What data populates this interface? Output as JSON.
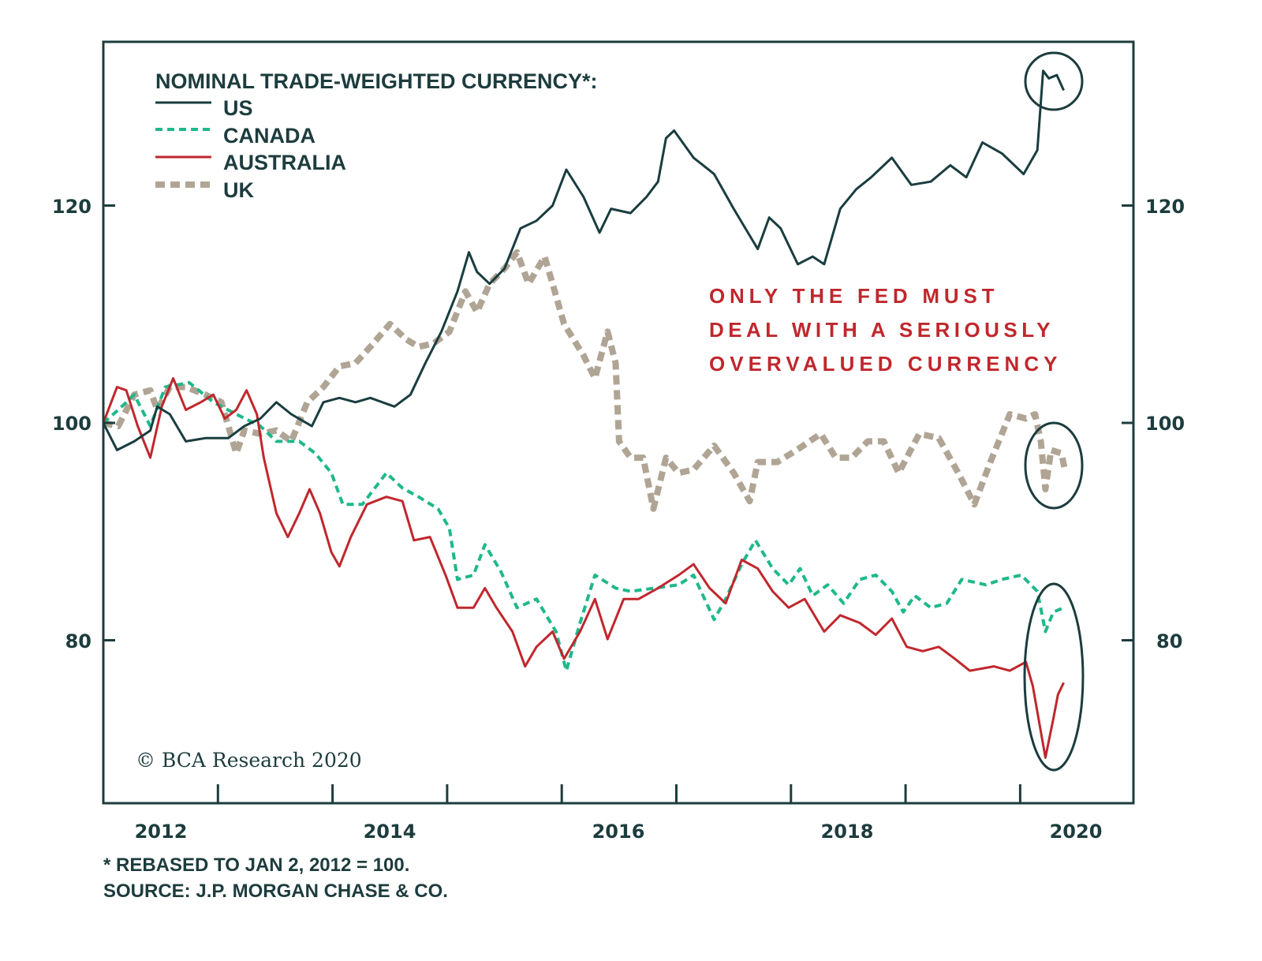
{
  "chart_data": {
    "type": "line",
    "title": "NOMINAL TRADE-WEIGHTED CURRENCY*:",
    "xlabel": "",
    "ylabel": "",
    "xlim": [
      2012,
      2021
    ],
    "ylim": [
      65,
      135
    ],
    "x_tick_labels": [
      "2012",
      "2014",
      "2016",
      "2018",
      "2020"
    ],
    "y_ticks": [
      80,
      100,
      120
    ],
    "y_tick_labels": [
      "80",
      "100",
      "120"
    ],
    "grid": false,
    "legend_placement": "top-left",
    "annotation": [
      "ONLY THE FED MUST",
      "DEAL WITH A SERIOUSLY",
      "OVERVALUED CURRENCY"
    ],
    "footnotes": [
      "* REBASED TO JAN 2, 2012 = 100.",
      "SOURCE: J.P. MORGAN CHASE & CO."
    ],
    "copyright": "© BCA Research 2020",
    "series": [
      {
        "name": "US",
        "color": "#1a3d3f",
        "style": "solid",
        "x": [
          2012.0,
          2012.12,
          2012.27,
          2012.41,
          2012.47,
          2012.58,
          2012.72,
          2012.89,
          2013.09,
          2013.23,
          2013.37,
          2013.51,
          2013.64,
          2013.82,
          2013.92,
          2014.06,
          2014.2,
          2014.33,
          2014.54,
          2014.68,
          2014.81,
          2014.95,
          2015.09,
          2015.19,
          2015.26,
          2015.37,
          2015.5,
          2015.64,
          2015.78,
          2015.92,
          2016.04,
          2016.19,
          2016.33,
          2016.43,
          2016.6,
          2016.74,
          2016.84,
          2016.91,
          2016.98,
          2017.15,
          2017.33,
          2017.5,
          2017.71,
          2017.81,
          2017.91,
          2018.06,
          2018.19,
          2018.29,
          2018.43,
          2018.57,
          2018.7,
          2018.88,
          2019.05,
          2019.22,
          2019.39,
          2019.53,
          2019.67,
          2019.84,
          2020.03,
          2020.15,
          2020.2,
          2020.25,
          2020.32,
          2020.38
        ],
        "y": [
          100,
          97.5,
          98.3,
          99.3,
          101.5,
          100.8,
          98.3,
          98.6,
          98.6,
          99.7,
          100.4,
          101.9,
          100.8,
          99.7,
          101.9,
          102.3,
          101.9,
          102.3,
          101.5,
          102.6,
          105.5,
          108.4,
          112.1,
          115.7,
          113.9,
          112.8,
          114.2,
          117.9,
          118.6,
          120,
          123.3,
          120.8,
          117.5,
          119.7,
          119.3,
          120.8,
          122.2,
          126.2,
          126.9,
          124.4,
          122.9,
          119.7,
          116,
          118.9,
          117.9,
          114.6,
          115.3,
          114.6,
          119.7,
          121.5,
          122.6,
          124.4,
          121.9,
          122.2,
          123.7,
          122.6,
          125.8,
          124.8,
          122.9,
          125.1,
          132.4,
          131.7,
          132,
          130.6
        ]
      },
      {
        "name": "CANADA",
        "color": "#1fb88a",
        "style": "dashed",
        "x": [
          2012.0,
          2012.13,
          2012.27,
          2012.41,
          2012.54,
          2012.75,
          2012.96,
          2013.16,
          2013.37,
          2013.51,
          2013.71,
          2013.85,
          2013.99,
          2014.09,
          2014.26,
          2014.47,
          2014.61,
          2014.75,
          2014.92,
          2015.02,
          2015.09,
          2015.23,
          2015.33,
          2015.47,
          2015.61,
          2015.78,
          2015.95,
          2016.04,
          2016.16,
          2016.29,
          2016.47,
          2016.6,
          2016.81,
          2017.02,
          2017.15,
          2017.33,
          2017.43,
          2017.57,
          2017.69,
          2017.84,
          2017.98,
          2018.08,
          2018.19,
          2018.32,
          2018.46,
          2018.6,
          2018.74,
          2018.88,
          2018.98,
          2019.08,
          2019.22,
          2019.36,
          2019.49,
          2019.7,
          2019.84,
          2020.01,
          2020.15,
          2020.22,
          2020.29,
          2020.38
        ],
        "y": [
          100,
          101.2,
          102.6,
          99.7,
          103.3,
          103.7,
          101.9,
          100.8,
          99.7,
          98.3,
          98.3,
          97.2,
          95.4,
          92.5,
          92.5,
          95.4,
          94,
          93.2,
          92.1,
          90.3,
          85.6,
          86,
          88.8,
          86.3,
          83,
          83.8,
          80.8,
          77.2,
          81.6,
          86,
          84.8,
          84.5,
          84.8,
          85.1,
          86,
          81.9,
          83.8,
          87,
          89.2,
          86.6,
          85.1,
          86.6,
          84.1,
          85.1,
          83.4,
          85.6,
          86,
          84.5,
          82.6,
          84.1,
          83,
          83.4,
          85.6,
          85.1,
          85.6,
          86,
          84.5,
          80.8,
          82.6,
          83
        ]
      },
      {
        "name": "AUSTRALIA",
        "color": "#c0272d",
        "style": "solid",
        "x": [
          2012.0,
          2012.12,
          2012.2,
          2012.3,
          2012.41,
          2012.51,
          2012.61,
          2012.72,
          2012.85,
          2012.96,
          2013.06,
          2013.16,
          2013.25,
          2013.34,
          2013.4,
          2013.51,
          2013.61,
          2013.71,
          2013.8,
          2013.89,
          2013.99,
          2014.06,
          2014.16,
          2014.3,
          2014.47,
          2014.61,
          2014.71,
          2014.85,
          2014.99,
          2015.09,
          2015.23,
          2015.33,
          2015.43,
          2015.57,
          2015.68,
          2015.78,
          2015.92,
          2016.02,
          2016.16,
          2016.29,
          2016.4,
          2016.54,
          2016.67,
          2016.84,
          2017.02,
          2017.15,
          2017.29,
          2017.43,
          2017.57,
          2017.71,
          2017.84,
          2017.98,
          2018.12,
          2018.29,
          2018.43,
          2018.6,
          2018.74,
          2018.88,
          2019.01,
          2019.15,
          2019.29,
          2019.43,
          2019.56,
          2019.77,
          2019.91,
          2020.05,
          2020.11,
          2020.22,
          2020.29,
          2020.33,
          2020.38
        ],
        "y": [
          100,
          103.3,
          103,
          99.7,
          96.8,
          101.5,
          104.1,
          101.2,
          101.9,
          102.6,
          100.4,
          101.2,
          103,
          100.8,
          96.8,
          91.7,
          89.5,
          91.7,
          93.9,
          91.7,
          88.1,
          86.8,
          89.5,
          92.5,
          93.2,
          92.8,
          89.2,
          89.5,
          85.9,
          83,
          83,
          84.8,
          83,
          80.8,
          77.6,
          79.4,
          80.8,
          78.3,
          80.8,
          83.8,
          80.1,
          83.8,
          83.8,
          84.8,
          86,
          87,
          84.8,
          83.4,
          87.4,
          86.6,
          84.5,
          83,
          83.8,
          80.8,
          82.3,
          81.6,
          80.5,
          82,
          79.4,
          79,
          79.4,
          78.3,
          77.2,
          77.6,
          77.2,
          78,
          75.8,
          69.2,
          72.8,
          75,
          76.1
        ]
      },
      {
        "name": "UK",
        "color": "#b0a595",
        "style": "dashed-thick",
        "x": [
          2012.0,
          2012.13,
          2012.27,
          2012.41,
          2012.47,
          2012.58,
          2012.72,
          2012.89,
          2013.03,
          2013.16,
          2013.23,
          2013.37,
          2013.51,
          2013.64,
          2013.78,
          2013.92,
          2014.06,
          2014.2,
          2014.33,
          2014.5,
          2014.64,
          2014.75,
          2014.88,
          2015.02,
          2015.16,
          2015.26,
          2015.37,
          2015.5,
          2015.61,
          2015.71,
          2015.85,
          2015.92,
          2016.02,
          2016.19,
          2016.29,
          2016.4,
          2016.47,
          2016.5,
          2016.6,
          2016.71,
          2016.8,
          2016.91,
          2017.02,
          2017.15,
          2017.33,
          2017.5,
          2017.64,
          2017.71,
          2017.88,
          2018.05,
          2018.26,
          2018.39,
          2018.53,
          2018.67,
          2018.81,
          2018.94,
          2019.12,
          2019.29,
          2019.46,
          2019.6,
          2019.74,
          2019.91,
          2020.05,
          2020.13,
          2020.18,
          2020.22,
          2020.27,
          2020.36,
          2020.39
        ],
        "y": [
          100,
          99.7,
          102.6,
          103,
          101.2,
          103.3,
          103.3,
          102.6,
          101.9,
          97.2,
          99.3,
          99,
          99.3,
          98.3,
          101.9,
          103.3,
          105.2,
          105.5,
          107,
          109.1,
          107.7,
          107,
          107.3,
          108.4,
          112.1,
          110.2,
          112.8,
          114.2,
          115.7,
          112.8,
          115.3,
          112.8,
          109.1,
          106.2,
          104.1,
          108.4,
          105.5,
          98.3,
          96.8,
          96.8,
          92.1,
          96.8,
          95.4,
          95.7,
          97.9,
          95.4,
          92.8,
          96.4,
          96.4,
          97.5,
          99,
          96.8,
          96.8,
          98.3,
          98.3,
          95.4,
          99,
          98.6,
          95.4,
          92.5,
          96.4,
          100.8,
          100.4,
          100.8,
          98.3,
          93.9,
          97.5,
          97.2,
          95.7
        ]
      }
    ]
  }
}
